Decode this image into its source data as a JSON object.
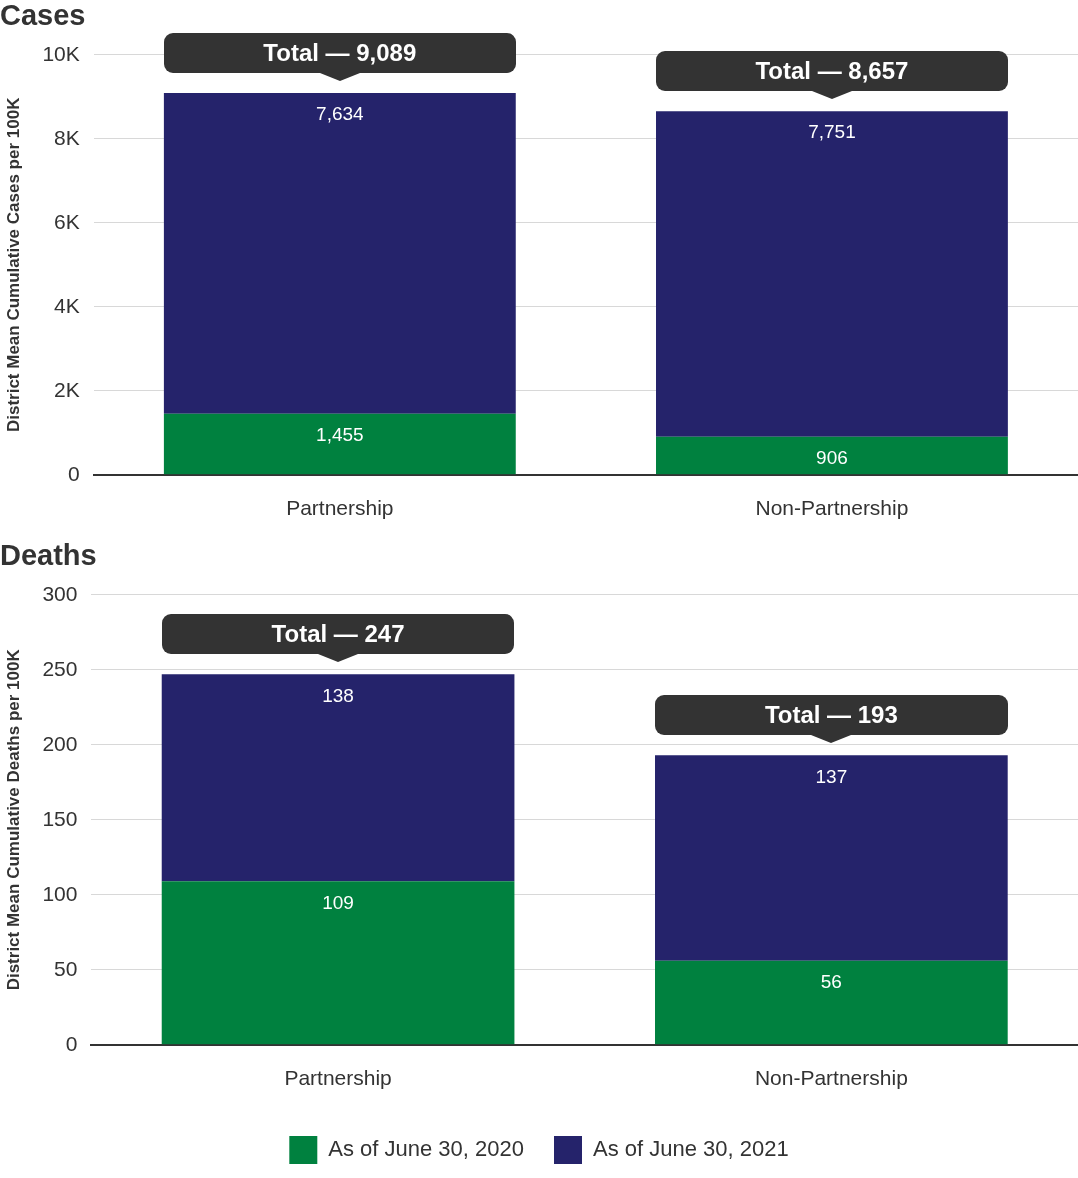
{
  "chart_data": [
    {
      "type": "bar",
      "title": "Cases",
      "ylabel": "District Mean Cumulative Cases per 100K",
      "categories": [
        "Partnership",
        "Non-Partnership"
      ],
      "stacked": true,
      "series": [
        {
          "color": "#00813f",
          "values": [
            1455,
            906
          ],
          "value_labels": [
            "1,455",
            "906"
          ]
        },
        {
          "color": "#25236b",
          "values": [
            7634,
            7751
          ],
          "value_labels": [
            "7,634",
            "7,751"
          ]
        }
      ],
      "totals": [
        "Total — 9,089",
        "Total — 8,657"
      ],
      "ylim": [
        0,
        10000
      ],
      "yticks": [
        0,
        {
          "value": 2000,
          "label": "2K"
        },
        {
          "value": 4000,
          "label": "4K"
        },
        {
          "value": 6000,
          "label": "6K"
        },
        {
          "value": 8000,
          "label": "8K"
        },
        {
          "value": 10000,
          "label": "10K"
        }
      ],
      "grid": "y"
    },
    {
      "type": "bar",
      "title": "Deaths",
      "ylabel": "District Mean Cumulative Deaths per 100K",
      "categories": [
        "Partnership",
        "Non-Partnership"
      ],
      "stacked": true,
      "series": [
        {
          "name": "As of June 30, 2020",
          "color": "#00813f",
          "values": [
            109,
            56
          ],
          "value_labels": [
            "109",
            "56"
          ]
        },
        {
          "name": "As of June 30, 2021",
          "color": "#25236b",
          "values": [
            138,
            137
          ],
          "value_labels": [
            "138",
            "137"
          ]
        }
      ],
      "totals": [
        "Total — 247",
        "Total — 193"
      ],
      "ylim": [
        0,
        300
      ],
      "yticks": [
        0,
        50,
        100,
        150,
        200,
        250,
        300
      ],
      "grid": "y",
      "legend": "bottom"
    }
  ]
}
